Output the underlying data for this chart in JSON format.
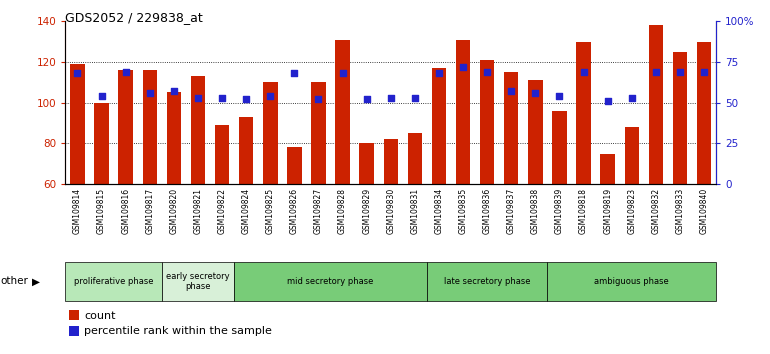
{
  "title": "GDS2052 / 229838_at",
  "samples": [
    "GSM109814",
    "GSM109815",
    "GSM109816",
    "GSM109817",
    "GSM109820",
    "GSM109821",
    "GSM109822",
    "GSM109824",
    "GSM109825",
    "GSM109826",
    "GSM109827",
    "GSM109828",
    "GSM109829",
    "GSM109830",
    "GSM109831",
    "GSM109834",
    "GSM109835",
    "GSM109836",
    "GSM109837",
    "GSM109838",
    "GSM109839",
    "GSM109818",
    "GSM109819",
    "GSM109823",
    "GSM109832",
    "GSM109833",
    "GSM109840"
  ],
  "count_values": [
    119,
    100,
    116,
    116,
    105,
    113,
    89,
    93,
    110,
    78,
    110,
    131,
    80,
    82,
    85,
    117,
    131,
    121,
    115,
    111,
    96,
    130,
    75,
    88,
    138,
    125,
    130
  ],
  "percentile_values": [
    68,
    54,
    69,
    56,
    57,
    53,
    53,
    52,
    54,
    68,
    52,
    68,
    52,
    53,
    53,
    68,
    72,
    69,
    57,
    56,
    54,
    69,
    51,
    53,
    69,
    69,
    69
  ],
  "phase_groups": [
    {
      "label": "proliferative phase",
      "count": 4,
      "color": "#b8e8b8"
    },
    {
      "label": "early secretory\nphase",
      "count": 3,
      "color": "#d8f0d8"
    },
    {
      "label": "mid secretory phase",
      "count": 8,
      "color": "#78cc78"
    },
    {
      "label": "late secretory phase",
      "count": 5,
      "color": "#78cc78"
    },
    {
      "label": "ambiguous phase",
      "count": 7,
      "color": "#78cc78"
    }
  ],
  "bar_color": "#cc2200",
  "dot_color": "#2222cc",
  "ylim_left": [
    60,
    140
  ],
  "ylim_right": [
    0,
    100
  ],
  "yticks_left": [
    60,
    80,
    100,
    120,
    140
  ],
  "yticks_right": [
    0,
    25,
    50,
    75,
    100
  ],
  "ytick_labels_right": [
    "0",
    "25",
    "50",
    "75",
    "100%"
  ],
  "bar_width": 0.6,
  "background_color": "#ffffff",
  "tick_bg_color": "#cccccc"
}
